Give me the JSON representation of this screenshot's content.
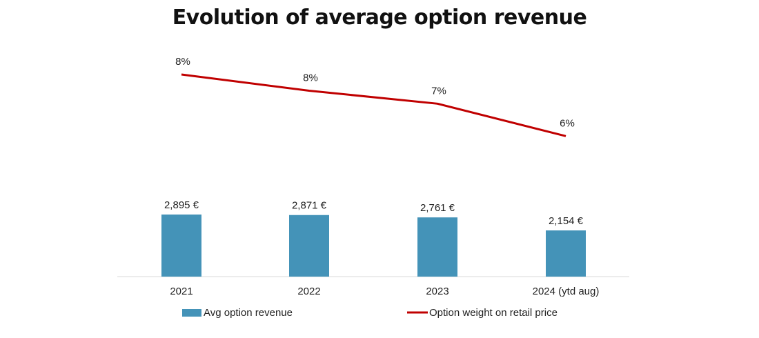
{
  "chart_data": {
    "type": "bar+line",
    "title": "Evolution of average option revenue",
    "categories": [
      "2021",
      "2022",
      "2023",
      "2024 (ytd aug)"
    ],
    "series": [
      {
        "name": "Avg option revenue",
        "type": "bar",
        "values": [
          2895,
          2871,
          2761,
          2154
        ],
        "labels": [
          "2,895 €",
          "2,871 €",
          "2,761 €",
          "2,154 €"
        ],
        "color": "#4493b8"
      },
      {
        "name": "Option weight on retail price",
        "type": "line",
        "values": [
          8.3,
          7.8,
          7.4,
          6.4
        ],
        "labels": [
          "8%",
          "8%",
          "7%",
          "6%"
        ],
        "color": "#c00000"
      }
    ],
    "grid": false,
    "legend": "bottom"
  }
}
